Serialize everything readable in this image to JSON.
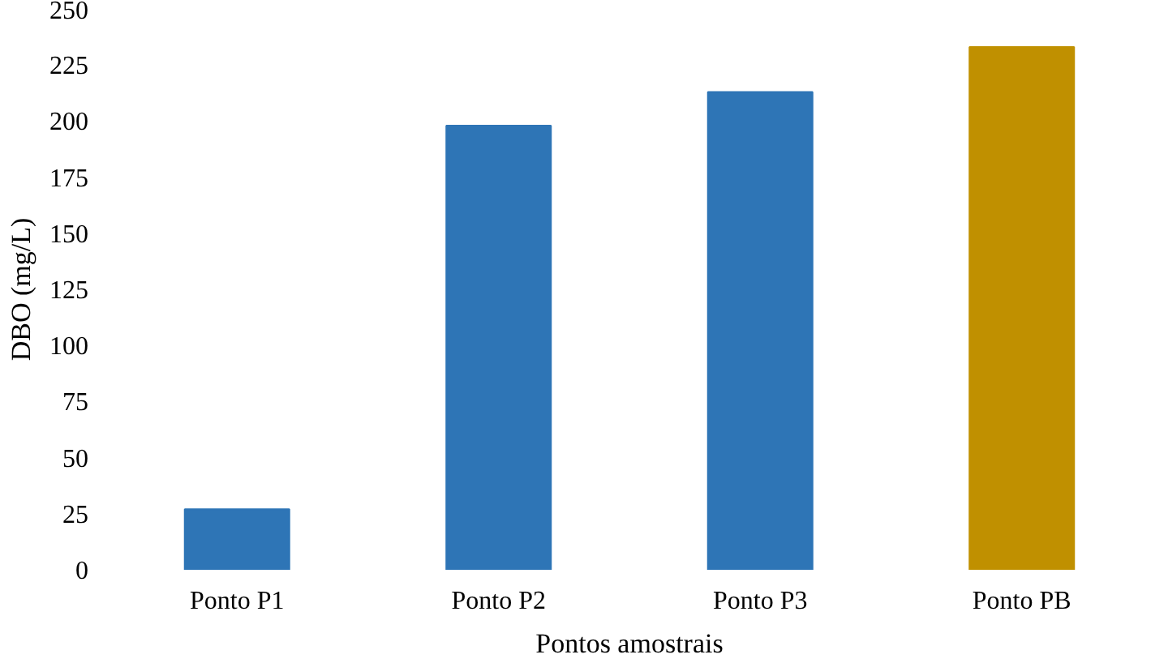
{
  "chart_data": {
    "type": "bar",
    "xlabel": "Pontos amostrais",
    "ylabel": "DBO (mg/L)",
    "categories": [
      "Ponto P1",
      "Ponto P2",
      "Ponto P3",
      "Ponto PB"
    ],
    "values": [
      27,
      198,
      213,
      233
    ],
    "colors": [
      "#2e75b6",
      "#2e75b6",
      "#2e75b6",
      "#c09000"
    ],
    "ylim": [
      0,
      250
    ],
    "yticks": [
      0,
      25,
      50,
      75,
      100,
      125,
      150,
      175,
      200,
      225,
      250
    ],
    "grid": false
  }
}
